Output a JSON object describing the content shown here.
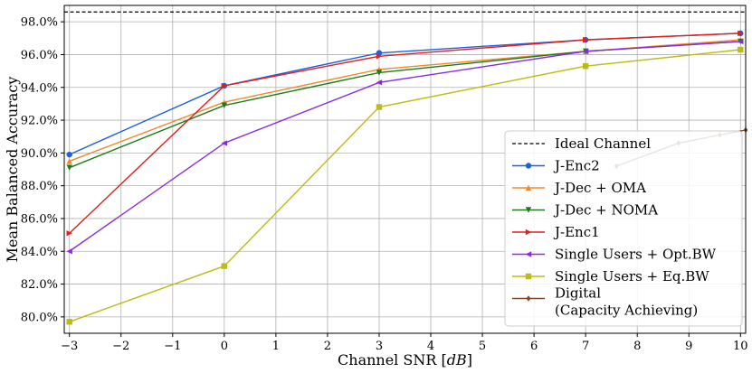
{
  "chart_data": {
    "type": "line",
    "xlabel": "Channel SNR [",
    "xlabel_unit": "dB",
    "xlabel_close": "]",
    "ylabel": "Mean Balanced Accuracy",
    "xlim": [
      -3.1,
      10.1
    ],
    "ylim": [
      79.0,
      99.0
    ],
    "x_ticks": [
      -3,
      -2,
      -1,
      0,
      1,
      2,
      3,
      4,
      5,
      6,
      7,
      8,
      9,
      10
    ],
    "x_tick_labels": [
      "−3",
      "−2",
      "−1",
      "0",
      "1",
      "2",
      "3",
      "4",
      "5",
      "6",
      "7",
      "8",
      "9",
      "10"
    ],
    "y_ticks": [
      80,
      82,
      84,
      86,
      88,
      90,
      92,
      94,
      96,
      98
    ],
    "y_tick_labels": [
      "80.0%",
      "82.0%",
      "84.0%",
      "86.0%",
      "88.0%",
      "90.0%",
      "92.0%",
      "94.0%",
      "96.0%",
      "98.0%"
    ],
    "grid": true,
    "legend_position": "lower-right",
    "ideal_channel": {
      "name": "Ideal Channel",
      "value": 98.6,
      "color": "#000000"
    },
    "series": [
      {
        "name": "J-Enc2",
        "color": "#1f5fe0",
        "marker": "circle",
        "x": [
          -3,
          0,
          3,
          7,
          10
        ],
        "y": [
          89.9,
          94.1,
          96.1,
          96.9,
          97.3
        ]
      },
      {
        "name": "J-Dec + OMA",
        "color": "#f08a2c",
        "marker": "triangle-up",
        "x": [
          -3,
          0,
          3,
          7,
          10
        ],
        "y": [
          89.5,
          93.1,
          95.1,
          96.2,
          96.9
        ]
      },
      {
        "name": "J-Dec + NOMA",
        "color": "#1a7d1a",
        "marker": "triangle-down",
        "x": [
          -3,
          0,
          3,
          7,
          10
        ],
        "y": [
          89.1,
          92.9,
          94.9,
          96.2,
          96.8
        ]
      },
      {
        "name": "J-Enc1",
        "color": "#e0201a",
        "marker": "triangle-right",
        "x": [
          -3,
          0,
          3,
          7,
          10
        ],
        "y": [
          85.1,
          94.1,
          95.9,
          96.9,
          97.3
        ]
      },
      {
        "name": "Single Users + Opt.BW",
        "color": "#8a2be2",
        "marker": "triangle-left",
        "x": [
          -3,
          0,
          3,
          7,
          10
        ],
        "y": [
          84.0,
          90.6,
          94.3,
          96.2,
          96.8
        ]
      },
      {
        "name": "Single Users + Eq.BW",
        "color": "#bcbc16",
        "marker": "square",
        "x": [
          -3,
          0,
          3,
          7,
          10
        ],
        "y": [
          79.7,
          83.1,
          92.8,
          95.3,
          96.3
        ]
      },
      {
        "name": "Digital\n(Capacity Achieving)",
        "name_line1": "Digital",
        "name_line2": "(Capacity Achieving)",
        "color": "#7a4a2a",
        "marker": "diamond",
        "x": [
          7.6,
          8.8,
          9.6,
          10.1
        ],
        "y": [
          89.2,
          90.6,
          91.1,
          91.4
        ]
      }
    ]
  }
}
